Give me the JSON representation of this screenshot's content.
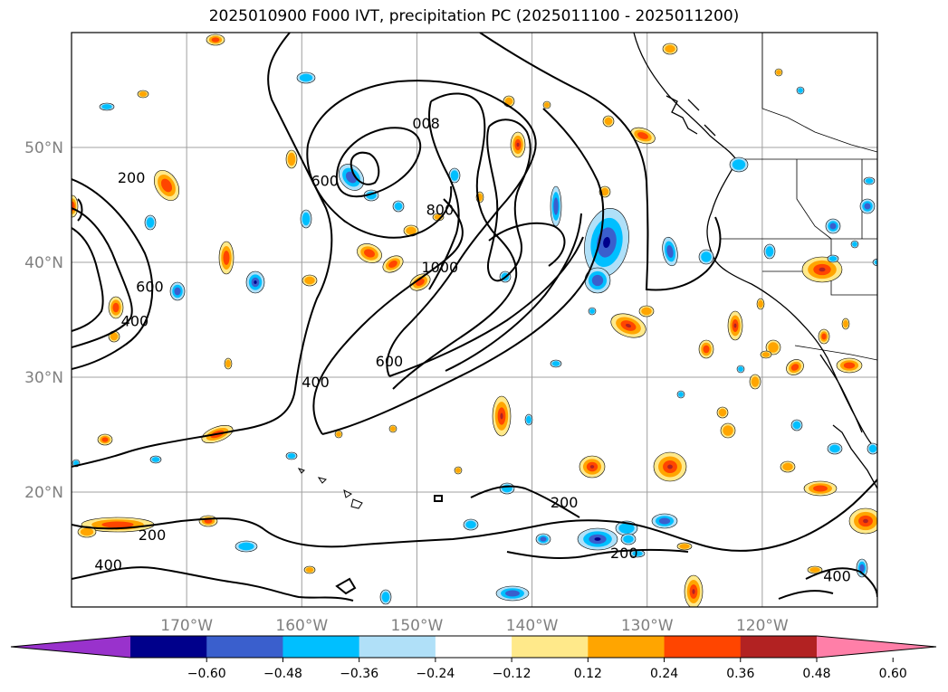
{
  "title": "2025010900 F000 IVT, precipitation PC (2025011100 - 2025011200)",
  "map": {
    "lon_range": [
      -180,
      -110
    ],
    "lat_range": [
      10,
      60
    ],
    "lon_ticks": [
      {
        "lon": -170,
        "label": "170°W"
      },
      {
        "lon": -160,
        "label": "160°W"
      },
      {
        "lon": -150,
        "label": "150°W"
      },
      {
        "lon": -140,
        "label": "140°W"
      },
      {
        "lon": -130,
        "label": "130°W"
      },
      {
        "lon": -120,
        "label": "120°W"
      }
    ],
    "lat_ticks": [
      {
        "lat": 50,
        "label": "50°N"
      },
      {
        "lat": 40,
        "label": "40°N"
      },
      {
        "lat": 30,
        "label": "30°N"
      },
      {
        "lat": 20,
        "label": "20°N"
      }
    ],
    "gridlines": true,
    "contour_labels": [
      {
        "text": "200",
        "lon": -174.8,
        "lat": 47.3
      },
      {
        "text": "600",
        "lon": -173.2,
        "lat": 37.8
      },
      {
        "text": "400",
        "lon": -174.5,
        "lat": 34.8
      },
      {
        "text": "600",
        "lon": -158.0,
        "lat": 47.0
      },
      {
        "text": "800",
        "lon": -148.0,
        "lat": 44.5
      },
      {
        "text": "008",
        "lon": -149.2,
        "lat": 52.0
      },
      {
        "text": "1000",
        "lon": -148.0,
        "lat": 39.5
      },
      {
        "text": "400",
        "lon": -158.8,
        "lat": 29.5
      },
      {
        "text": "600",
        "lon": -152.4,
        "lat": 31.3
      },
      {
        "text": "200",
        "lon": -137.2,
        "lat": 19.0
      },
      {
        "text": "200",
        "lon": -173.0,
        "lat": 16.2
      },
      {
        "text": "400",
        "lon": -176.8,
        "lat": 13.6
      },
      {
        "text": "200",
        "lon": -132.0,
        "lat": 14.6
      },
      {
        "text": "400",
        "lon": -113.5,
        "lat": 12.6
      }
    ]
  },
  "colorbar": {
    "levels": [
      "-0.60",
      "-0.48",
      "-0.36",
      "-0.24",
      "-0.12",
      "0.12",
      "0.24",
      "0.36",
      "0.48",
      "0.60"
    ],
    "label_display": [
      "−0.60",
      "−0.48",
      "−0.36",
      "−0.24",
      "−0.12",
      "0.12",
      "0.24",
      "0.36",
      "0.48",
      "0.60"
    ],
    "colors": [
      "#9932cc",
      "#00008b",
      "#3a5fcd",
      "#00bfff",
      "#b0e0f8",
      "#ffffff",
      "#ffe98a",
      "#ffa500",
      "#ff4500",
      "#b22222",
      "#ff7fa8"
    ],
    "extend": "both"
  }
}
